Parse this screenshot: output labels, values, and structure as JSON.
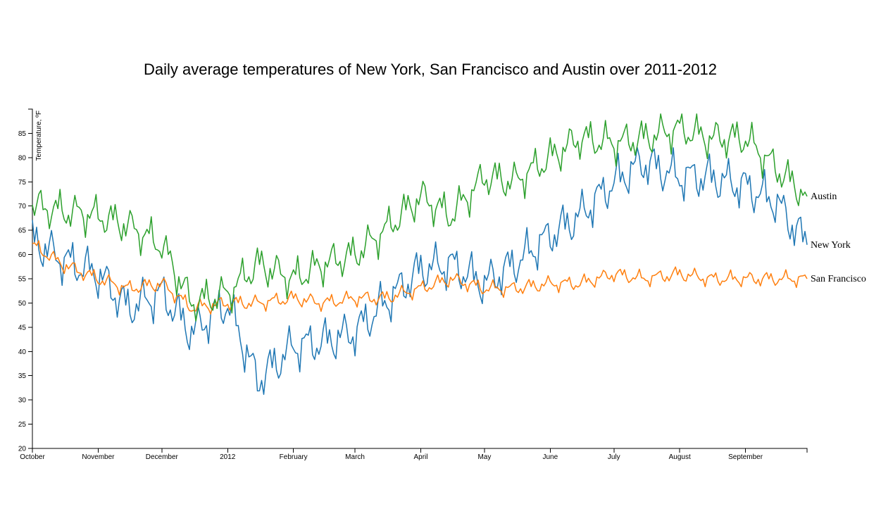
{
  "chart_data": {
    "type": "line",
    "title": "Daily average temperatures of New York, San Francisco and Austin over 2011-2012",
    "xlabel": "",
    "ylabel": "Temperature, ºF",
    "ylim": [
      20,
      90
    ],
    "yticks": [
      20,
      25,
      30,
      35,
      40,
      45,
      50,
      55,
      60,
      65,
      70,
      75,
      80,
      85
    ],
    "xlim": [
      "2011-10-01",
      "2012-09-30"
    ],
    "xtick_labels": [
      "October",
      "November",
      "December",
      "2012",
      "February",
      "March",
      "April",
      "May",
      "June",
      "July",
      "August",
      "September"
    ],
    "x_dates": [
      "2011-10-01",
      "2011-10-15",
      "2011-11-01",
      "2011-11-15",
      "2011-12-01",
      "2011-12-15",
      "2012-01-01",
      "2012-01-15",
      "2012-02-01",
      "2012-02-15",
      "2012-03-01",
      "2012-03-15",
      "2012-04-01",
      "2012-04-15",
      "2012-05-01",
      "2012-05-15",
      "2012-06-01",
      "2012-06-15",
      "2012-07-01",
      "2012-07-15",
      "2012-08-01",
      "2012-08-15",
      "2012-09-01",
      "2012-09-15",
      "2012-09-30"
    ],
    "series": [
      {
        "name": "New York",
        "color": "#1f77b4",
        "values": [
          63,
          59,
          56,
          49,
          52,
          44,
          50,
          34,
          41,
          42,
          44,
          50,
          57,
          58,
          54,
          58,
          64,
          68,
          75,
          79,
          76,
          76,
          74,
          71,
          62
        ]
      },
      {
        "name": "San Francisco",
        "color": "#ff7f0e",
        "values": [
          62,
          58,
          55,
          53,
          54,
          49,
          50,
          50,
          51,
          50,
          51,
          51,
          53,
          55,
          53,
          53,
          54,
          54,
          56,
          55,
          56,
          55,
          55,
          55,
          55
        ]
      },
      {
        "name": "Austin",
        "color": "#2ca02c",
        "values": [
          70,
          69,
          68,
          66,
          62,
          50,
          52,
          58,
          55,
          58,
          60,
          65,
          72,
          68,
          76,
          75,
          80,
          84,
          83,
          84,
          86,
          84,
          84,
          78,
          72
        ]
      }
    ],
    "legend": "inline-end-labels",
    "grid": false
  }
}
